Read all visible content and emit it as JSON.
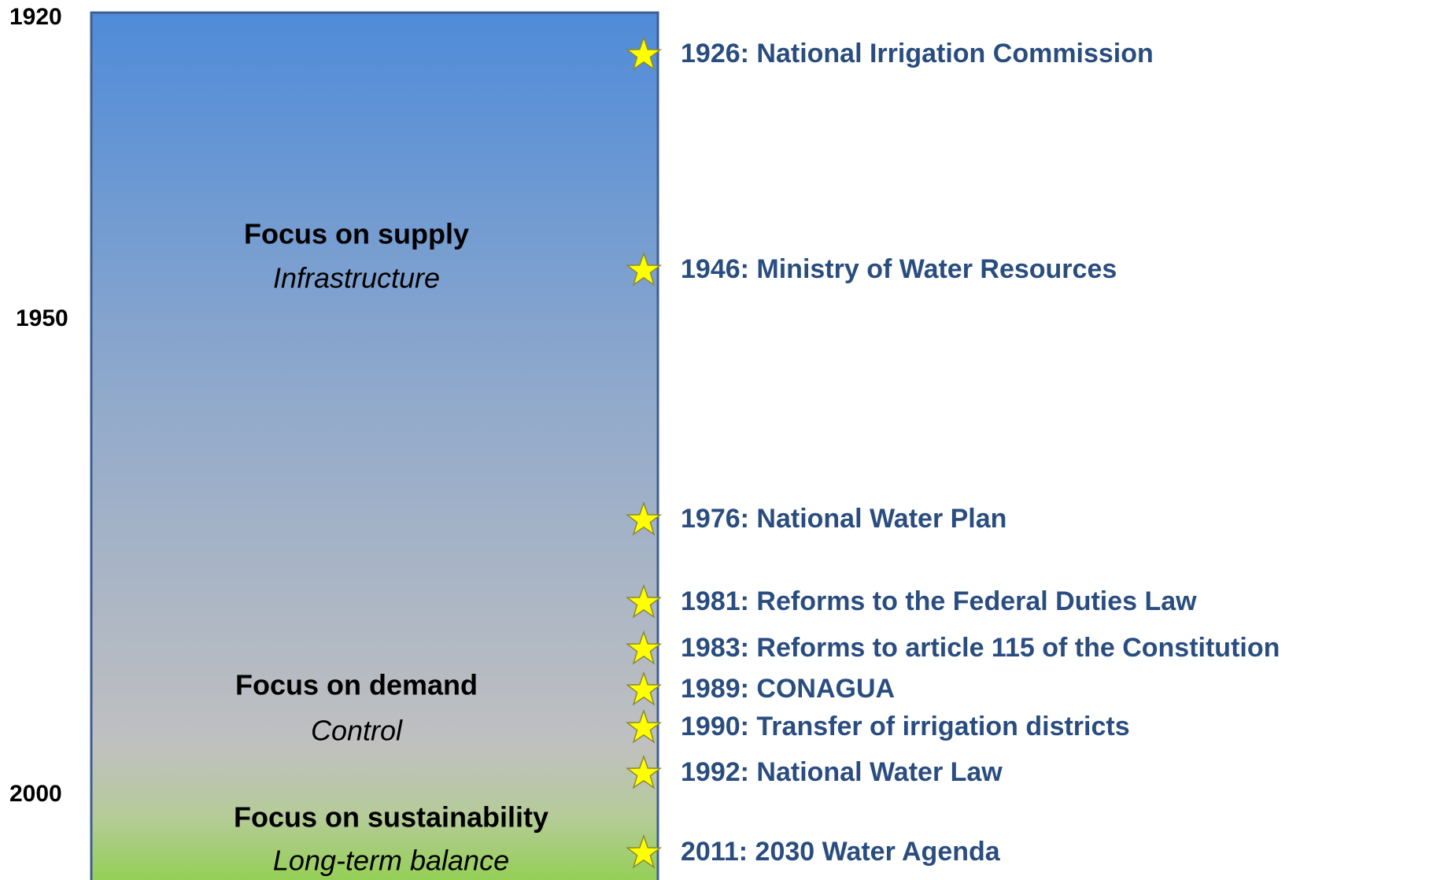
{
  "axis_labels": [
    "1920",
    "1950",
    "2000"
  ],
  "phases": [
    {
      "title": "Focus on supply",
      "subtitle": "Infrastructure"
    },
    {
      "title": "Focus on demand",
      "subtitle": "Control"
    },
    {
      "title": "Focus on sustainability",
      "subtitle": "Long-term balance"
    }
  ],
  "events": [
    "1926: National Irrigation Commission",
    "1946: Ministry of Water Resources",
    "1976: National Water Plan",
    "1981: Reforms to the Federal Duties Law",
    "1983: Reforms to article 115 of the Constitution",
    "1989: CONAGUA",
    "1990: Transfer of irrigation districts",
    "1992: National Water Law",
    "2011: 2030 Water Agenda"
  ]
}
